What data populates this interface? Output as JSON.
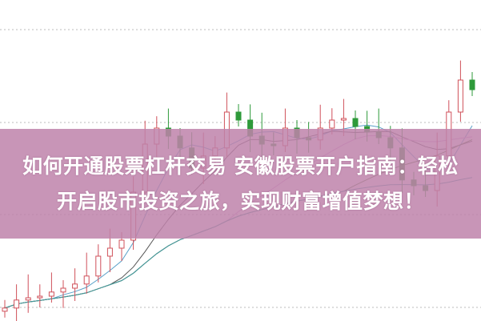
{
  "title": {
    "line1": "如何开通股票杠杆交易 安徽股票开户指南：轻松",
    "line2": "开启股市投资之旅，实现财富增值梦想！"
  },
  "colors": {
    "banner": "#be82aa",
    "up": "#d0505a",
    "down": "#2e9a3a",
    "grid": "#bbbbbb",
    "ma": [
      "#5aa0c8",
      "#555555",
      "#d8a0d8",
      "#4f7f3a",
      "#3f9aa0"
    ]
  },
  "chart_data": {
    "type": "candlestick",
    "grid": true,
    "ylim": [
      10,
      20
    ],
    "closes": [
      10.38,
      10.63,
      10.7,
      10.75,
      10.88,
      11.0,
      11.13,
      11.38,
      12.0,
      12.25,
      12.5,
      14.0,
      15.5,
      16.0,
      15.75,
      15.38,
      14.75,
      15.13,
      15.38,
      16.5,
      16.25,
      15.75,
      15.5,
      15.45,
      16.0,
      15.7,
      15.63,
      16.0,
      16.25,
      16.3,
      16.05,
      15.88,
      15.7,
      15.38,
      14.38,
      14.2,
      14.05,
      15.13,
      16.5,
      17.5,
      17.2
    ],
    "moving_averages": [
      5,
      10,
      20,
      30,
      60
    ]
  }
}
